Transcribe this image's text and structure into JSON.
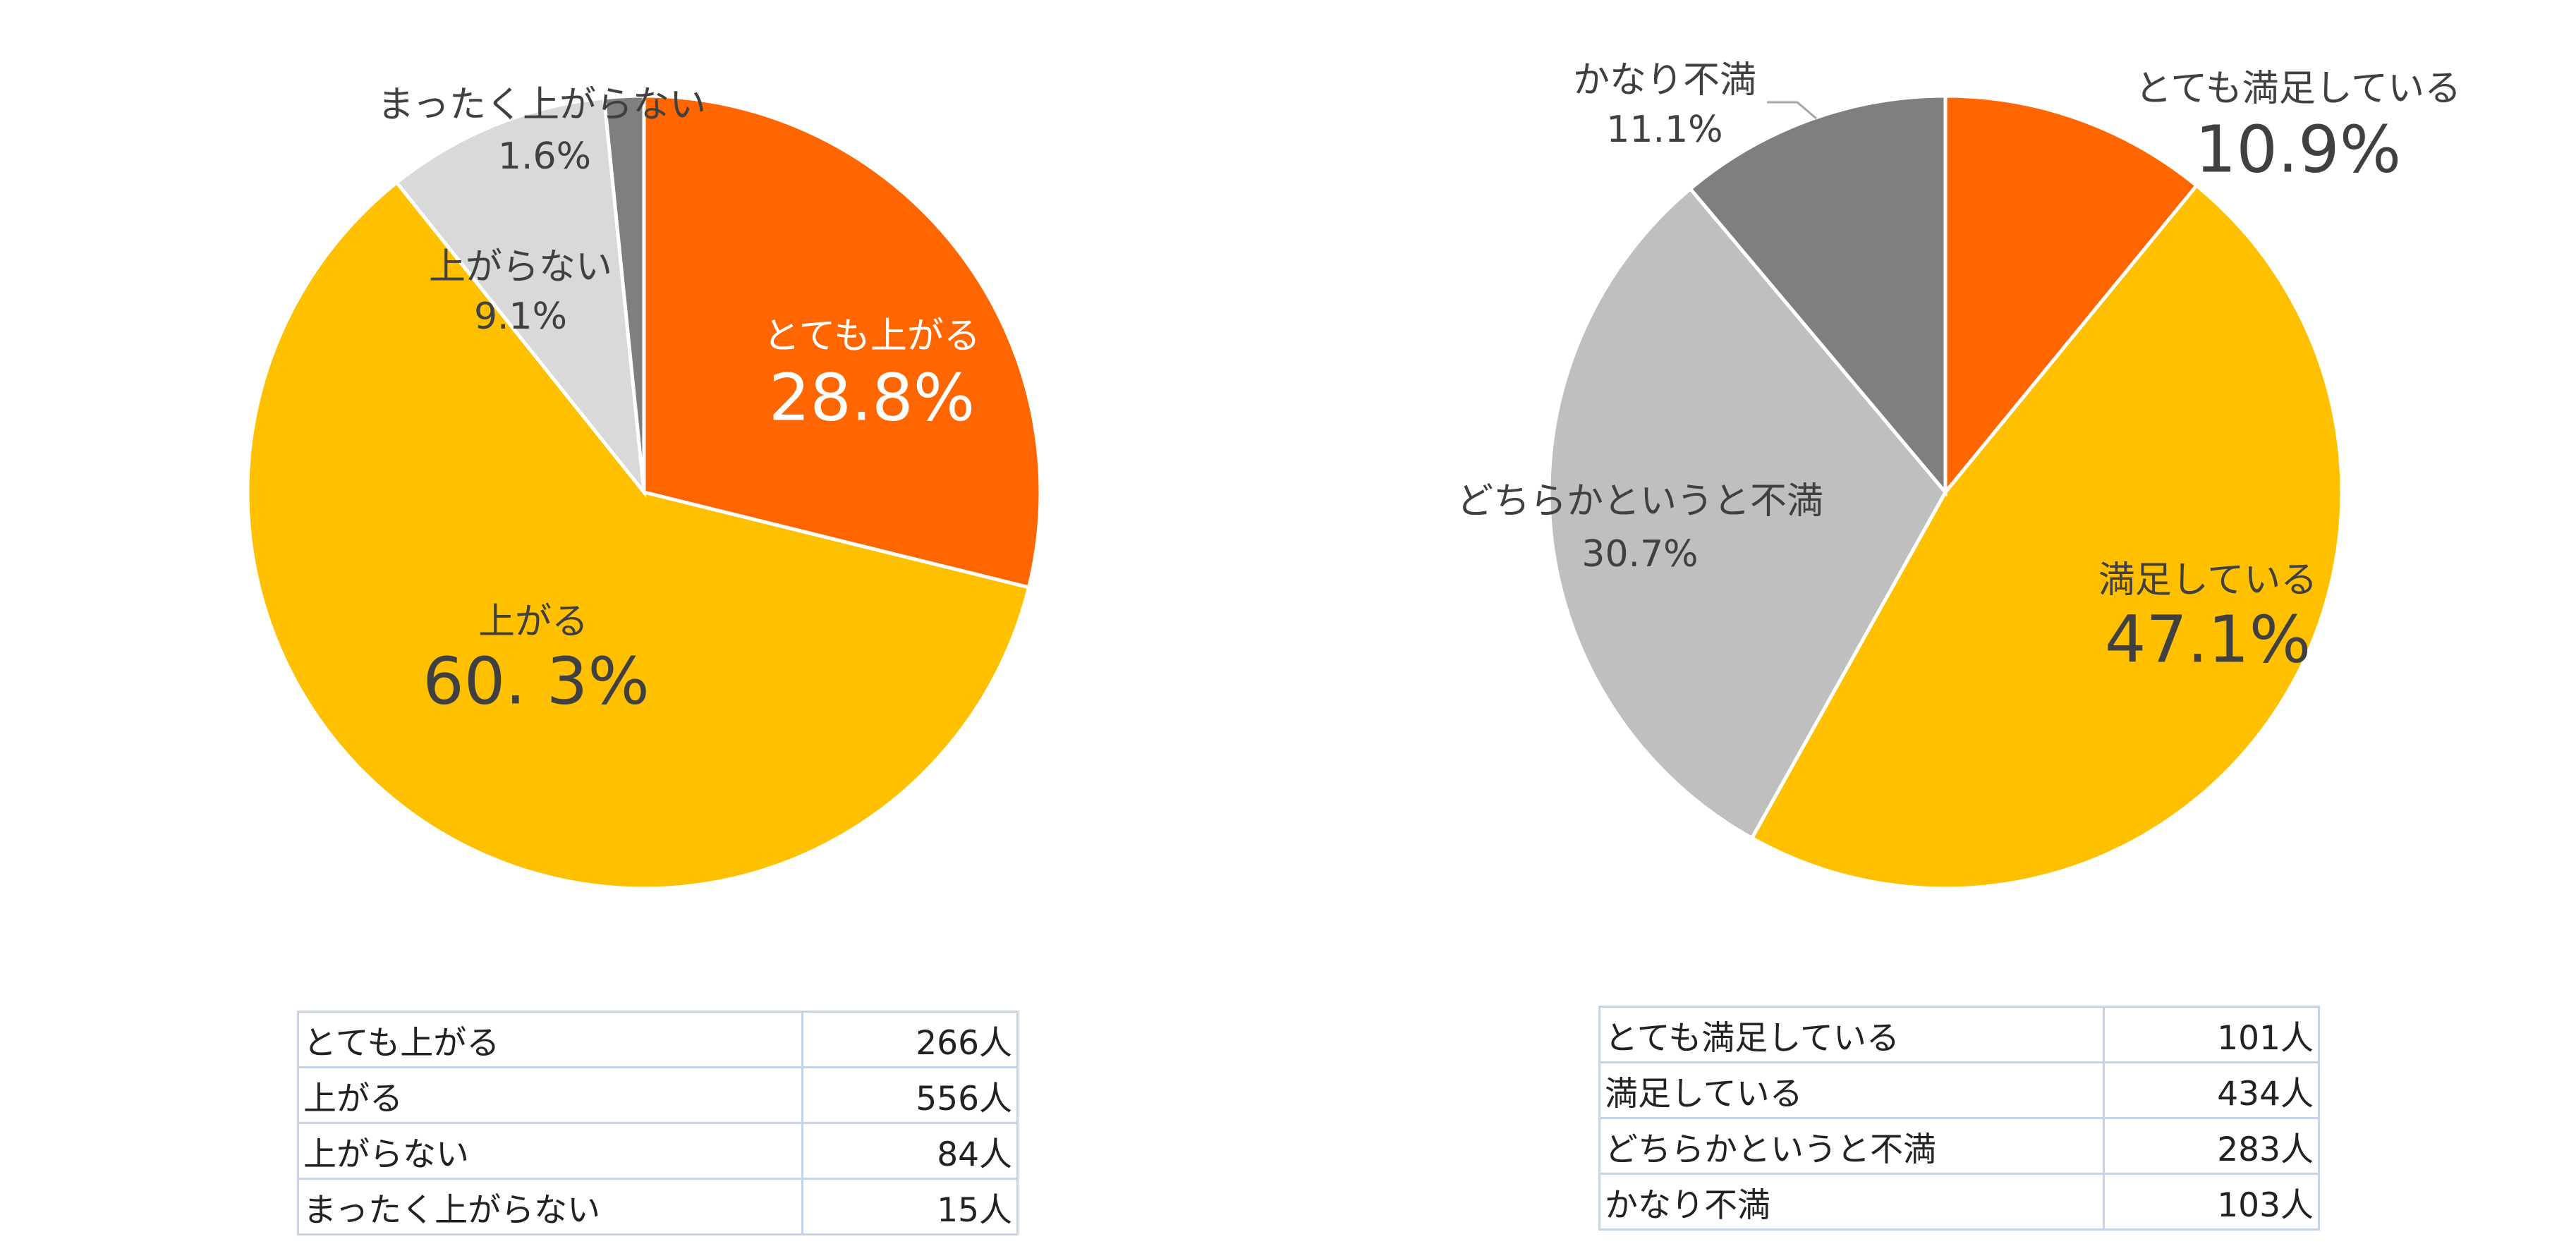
{
  "chart_data": [
    {
      "type": "pie",
      "categories": [
        "とても上がる",
        "上がる",
        "上がらない",
        "まったく上がらない"
      ],
      "values": [
        28.8,
        60.3,
        9.1,
        1.6
      ],
      "value_labels": [
        "28.8%",
        "60. 3%",
        "9.1%",
        "1.6%"
      ],
      "colors": [
        "#FF6600",
        "#FFC000",
        "#D9D9D9",
        "#7F7F7F"
      ]
    },
    {
      "type": "pie",
      "categories": [
        "とても満足している",
        "満足している",
        "どちらかというと不満",
        "かなり不満"
      ],
      "values": [
        10.9,
        47.1,
        30.7,
        11.1
      ],
      "value_labels": [
        "10.9%",
        "47.1%",
        "30.7%",
        "11.1%"
      ],
      "colors": [
        "#FF6600",
        "#FFC000",
        "#BFBFBF",
        "#7F7F7F"
      ]
    }
  ],
  "tables": [
    {
      "rows": [
        [
          "とても上がる",
          "266人"
        ],
        [
          "上がる",
          "556人"
        ],
        [
          "上がらない",
          "84人"
        ],
        [
          "まったく上がらない",
          "15人"
        ]
      ]
    },
    {
      "rows": [
        [
          "とても満足している",
          "101人"
        ],
        [
          "満足している",
          "434人"
        ],
        [
          "どちらかというと不満",
          "283人"
        ],
        [
          "かなり不満",
          "103人"
        ]
      ]
    }
  ]
}
